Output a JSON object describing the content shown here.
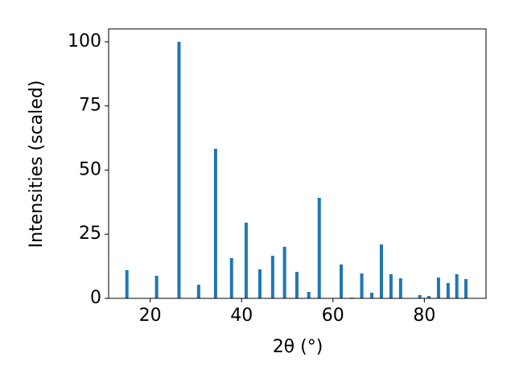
{
  "chart_data": {
    "type": "bar",
    "xlabel": "2θ (°)",
    "ylabel": "Intensities (scaled)",
    "x": [
      14.9,
      21.4,
      26.3,
      30.6,
      34.3,
      37.8,
      41.0,
      44.0,
      46.8,
      49.4,
      52.1,
      54.7,
      57.0,
      61.8,
      64.1,
      66.3,
      68.5,
      70.6,
      72.7,
      74.8,
      79.0,
      81.0,
      83.1,
      85.2,
      87.1,
      89.1
    ],
    "values": [
      11,
      8.8,
      100,
      5.3,
      58.3,
      15.7,
      29.5,
      11.3,
      16.6,
      20.1,
      10.3,
      2.5,
      39.2,
      13.2,
      0.3,
      9.7,
      2.2,
      21.0,
      9.4,
      7.8,
      1.3,
      0.9,
      8.1,
      6.0,
      9.4,
      7.5
    ],
    "color": "#1f77b4",
    "xlim": [
      10.9,
      93.5
    ],
    "xticks": [
      20,
      40,
      60,
      80
    ],
    "ylim": [
      0,
      105
    ],
    "yticks": [
      0,
      25,
      50,
      75,
      100
    ],
    "grid": false
  }
}
